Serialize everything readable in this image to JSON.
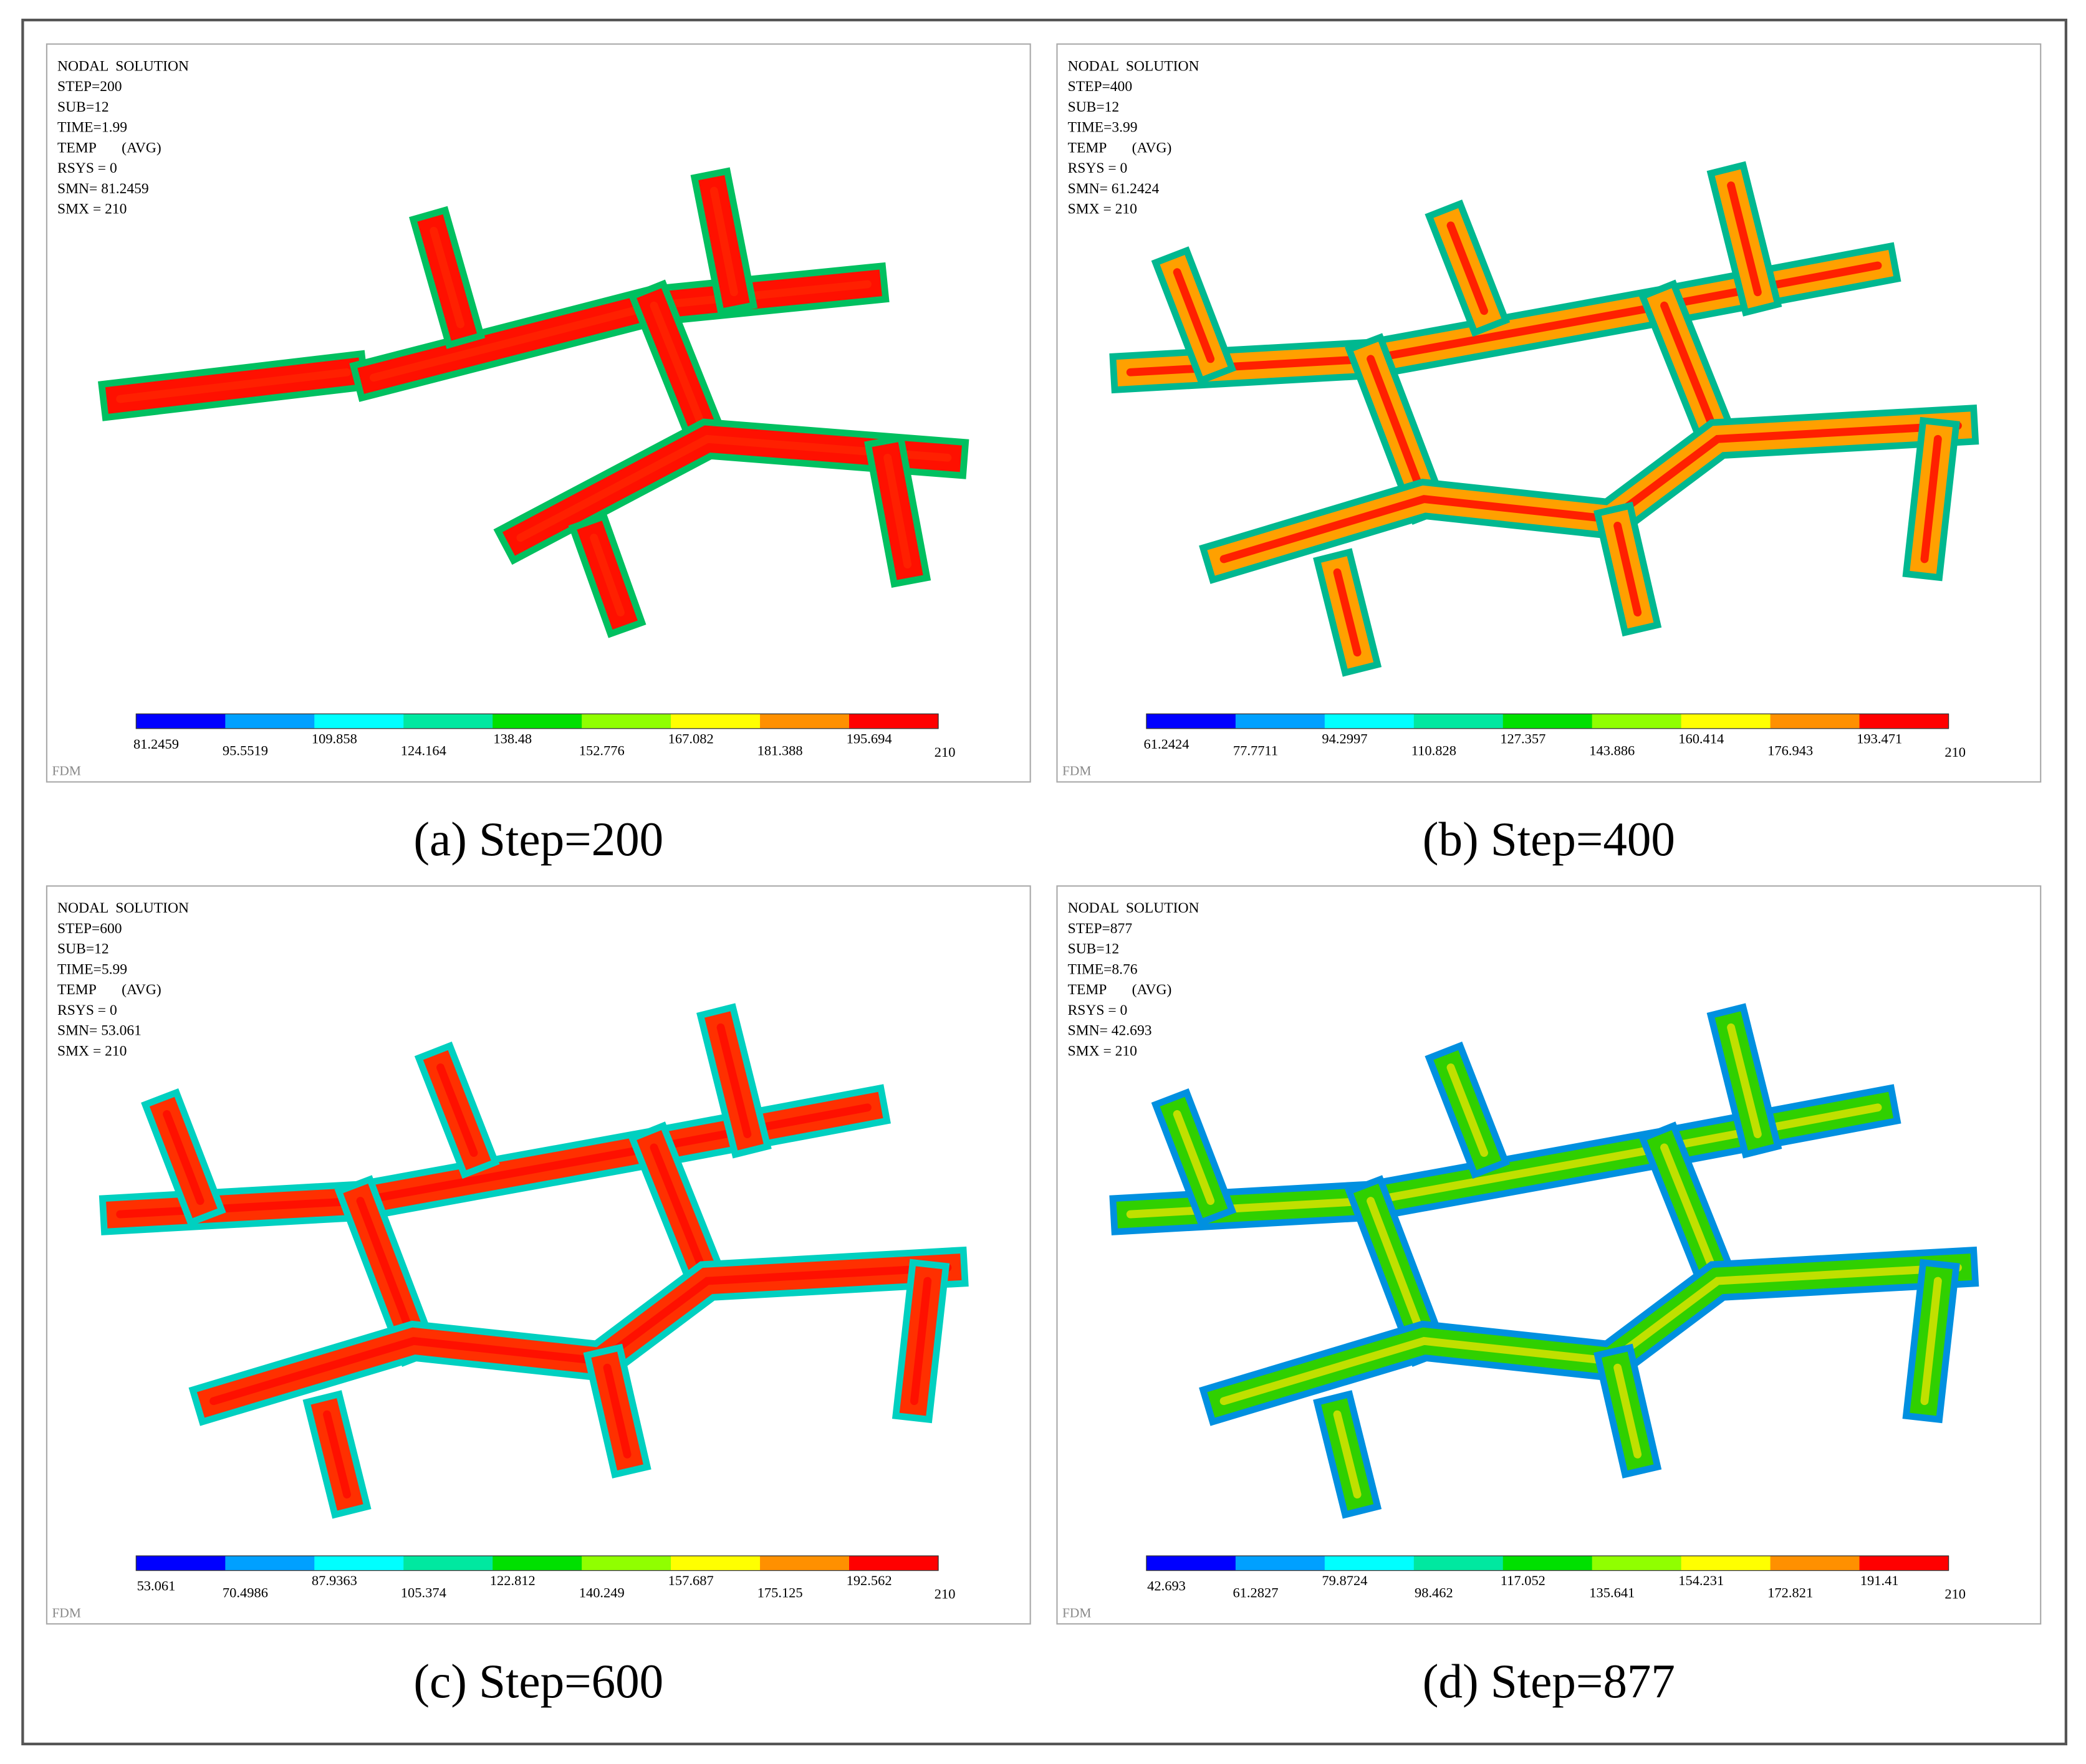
{
  "panels": [
    {
      "header": [
        "NODAL  SOLUTION",
        "STEP=200",
        "SUB=12",
        "TIME=1.99",
        "TEMP       (AVG)",
        "RSYS = 0",
        "SMN= 81.2459",
        "SMX = 210"
      ],
      "colorbar": {
        "colors": [
          "#0000ff",
          "#00a0ff",
          "#00ffff",
          "#00e8a0",
          "#00e000",
          "#90ff00",
          "#ffff00",
          "#ff9000",
          "#ff0000"
        ],
        "labels": [
          81.2459,
          95.5519,
          109.858,
          124.164,
          138.48,
          152.776,
          167.082,
          181.388,
          195.694,
          210
        ]
      },
      "footer": "FDM",
      "caption": "(a) Step=200"
    },
    {
      "header": [
        "NODAL  SOLUTION",
        "STEP=400",
        "SUB=12",
        "TIME=3.99",
        "TEMP       (AVG)",
        "RSYS = 0",
        "SMN= 61.2424",
        "SMX = 210"
      ],
      "colorbar": {
        "colors": [
          "#0000ff",
          "#00a0ff",
          "#00ffff",
          "#00e8a0",
          "#00e000",
          "#90ff00",
          "#ffff00",
          "#ff9000",
          "#ff0000"
        ],
        "labels": [
          61.2424,
          77.7711,
          94.2997,
          110.828,
          127.357,
          143.886,
          160.414,
          176.943,
          193.471,
          210
        ]
      },
      "footer": "FDM",
      "caption": "(b) Step=400"
    },
    {
      "header": [
        "NODAL  SOLUTION",
        "STEP=600",
        "SUB=12",
        "TIME=5.99",
        "TEMP       (AVG)",
        "RSYS = 0",
        "SMN= 53.061",
        "SMX = 210"
      ],
      "colorbar": {
        "colors": [
          "#0000ff",
          "#00a0ff",
          "#00ffff",
          "#00e8a0",
          "#00e000",
          "#90ff00",
          "#ffff00",
          "#ff9000",
          "#ff0000"
        ],
        "labels": [
          53.061,
          70.4986,
          87.9363,
          105.374,
          122.812,
          140.249,
          157.687,
          175.125,
          192.562,
          210
        ]
      },
      "footer": "FDM",
      "caption": "(c) Step=600"
    },
    {
      "header": [
        "NODAL  SOLUTION",
        "STEP=877",
        "SUB=12",
        "TIME=8.76",
        "TEMP       (AVG)",
        "RSYS = 0",
        "SMN= 42.693",
        "SMX = 210"
      ],
      "colorbar": {
        "colors": [
          "#0000ff",
          "#00a0ff",
          "#00ffff",
          "#00e8a0",
          "#00e000",
          "#90ff00",
          "#ffff00",
          "#ff9000",
          "#ff0000"
        ],
        "labels": [
          42.693,
          61.2827,
          79.8724,
          98.462,
          117.052,
          135.641,
          154.231,
          172.821,
          191.41,
          210
        ]
      },
      "footer": "FDM",
      "caption": "(d) Step=877"
    }
  ]
}
